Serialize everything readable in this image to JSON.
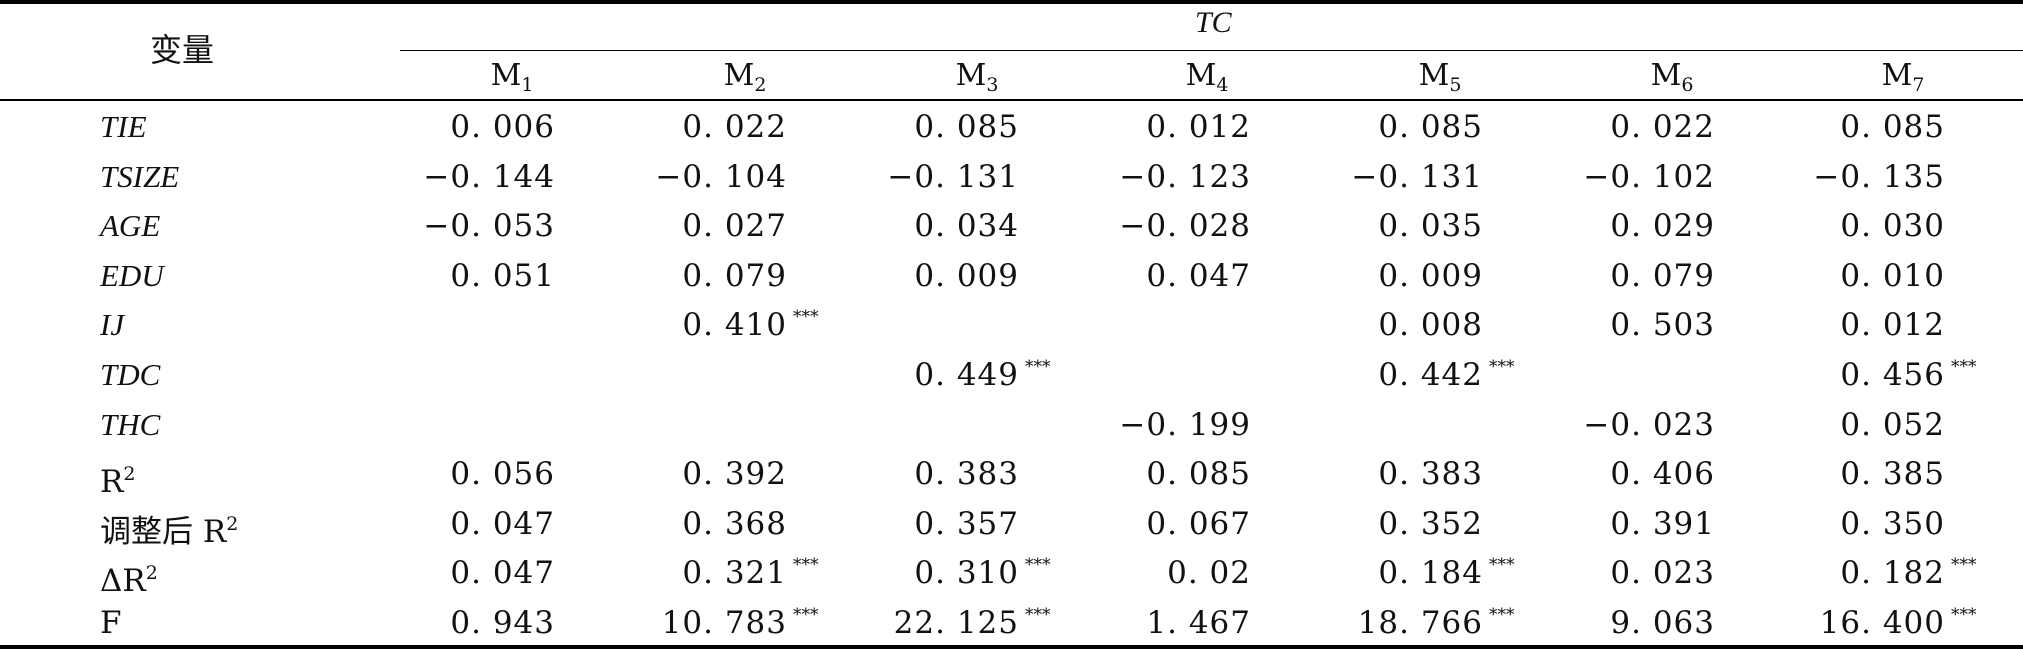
{
  "table": {
    "header_var": "变量",
    "header_group": "TC",
    "models": [
      {
        "base": "M",
        "sub": "1"
      },
      {
        "base": "M",
        "sub": "2"
      },
      {
        "base": "M",
        "sub": "3"
      },
      {
        "base": "M",
        "sub": "4"
      },
      {
        "base": "M",
        "sub": "5"
      },
      {
        "base": "M",
        "sub": "6"
      },
      {
        "base": "M",
        "sub": "7"
      }
    ],
    "rows": [
      {
        "label": "TIE",
        "italic": true,
        "values": [
          "0. 006",
          "0. 022",
          "0. 085",
          "0. 012",
          "0. 085",
          "0. 022",
          "0. 085"
        ],
        "stars": [
          "",
          "",
          "",
          "",
          "",
          "",
          ""
        ]
      },
      {
        "label": "TSIZE",
        "italic": true,
        "values": [
          "−0. 144",
          "−0. 104",
          "−0. 131",
          "−0. 123",
          "−0. 131",
          "−0. 102",
          "−0. 135"
        ],
        "stars": [
          "",
          "",
          "",
          "",
          "",
          "",
          ""
        ]
      },
      {
        "label": "AGE",
        "italic": true,
        "values": [
          "−0. 053",
          "0. 027",
          "0. 034",
          "−0. 028",
          "0. 035",
          "0. 029",
          "0. 030"
        ],
        "stars": [
          "",
          "",
          "",
          "",
          "",
          "",
          ""
        ]
      },
      {
        "label": "EDU",
        "italic": true,
        "values": [
          "0. 051",
          "0. 079",
          "0. 009",
          "0. 047",
          "0. 009",
          "0. 079",
          "0. 010"
        ],
        "stars": [
          "",
          "",
          "",
          "",
          "",
          "",
          ""
        ]
      },
      {
        "label": "IJ",
        "italic": true,
        "values": [
          "",
          "0. 410",
          "",
          "",
          "0. 008",
          "0. 503",
          "0. 012"
        ],
        "stars": [
          "",
          "***",
          "",
          "",
          "",
          "",
          ""
        ]
      },
      {
        "label": "TDC",
        "italic": true,
        "values": [
          "",
          "",
          "0. 449",
          "",
          "0. 442",
          "",
          "0. 456"
        ],
        "stars": [
          "",
          "",
          "***",
          "",
          "***",
          "",
          "***"
        ]
      },
      {
        "label": "THC",
        "italic": true,
        "values": [
          "",
          "",
          "",
          "−0. 199",
          "",
          "−0. 023",
          "0. 052"
        ],
        "stars": [
          "",
          "",
          "",
          "",
          "",
          "",
          ""
        ]
      },
      {
        "label": "R",
        "sup": "2",
        "italic": false,
        "values": [
          "0. 056",
          "0. 392",
          "0. 383",
          "0. 085",
          "0. 383",
          "0. 406",
          "0. 385"
        ],
        "stars": [
          "",
          "",
          "",
          "",
          "",
          "",
          ""
        ]
      },
      {
        "label": "调整后 R",
        "sup": "2",
        "italic": false,
        "values": [
          "0. 047",
          "0. 368",
          "0. 357",
          "0. 067",
          "0. 352",
          "0. 391",
          "0. 350"
        ],
        "stars": [
          "",
          "",
          "",
          "",
          "",
          "",
          ""
        ]
      },
      {
        "label": "ΔR",
        "sup": "2",
        "italic": false,
        "values": [
          "0. 047",
          "0. 321",
          "0. 310",
          "0. 02",
          "0. 184",
          "0. 023",
          "0. 182"
        ],
        "stars": [
          "",
          "***",
          "***",
          "",
          "***",
          "",
          "***"
        ]
      },
      {
        "label": "F",
        "italic": false,
        "values": [
          "0. 943",
          "10. 783",
          "22. 125",
          "1. 467",
          "18. 766",
          "9. 063",
          "16. 400"
        ],
        "stars": [
          "",
          "***",
          "***",
          "",
          "***",
          "",
          "***"
        ]
      }
    ]
  }
}
